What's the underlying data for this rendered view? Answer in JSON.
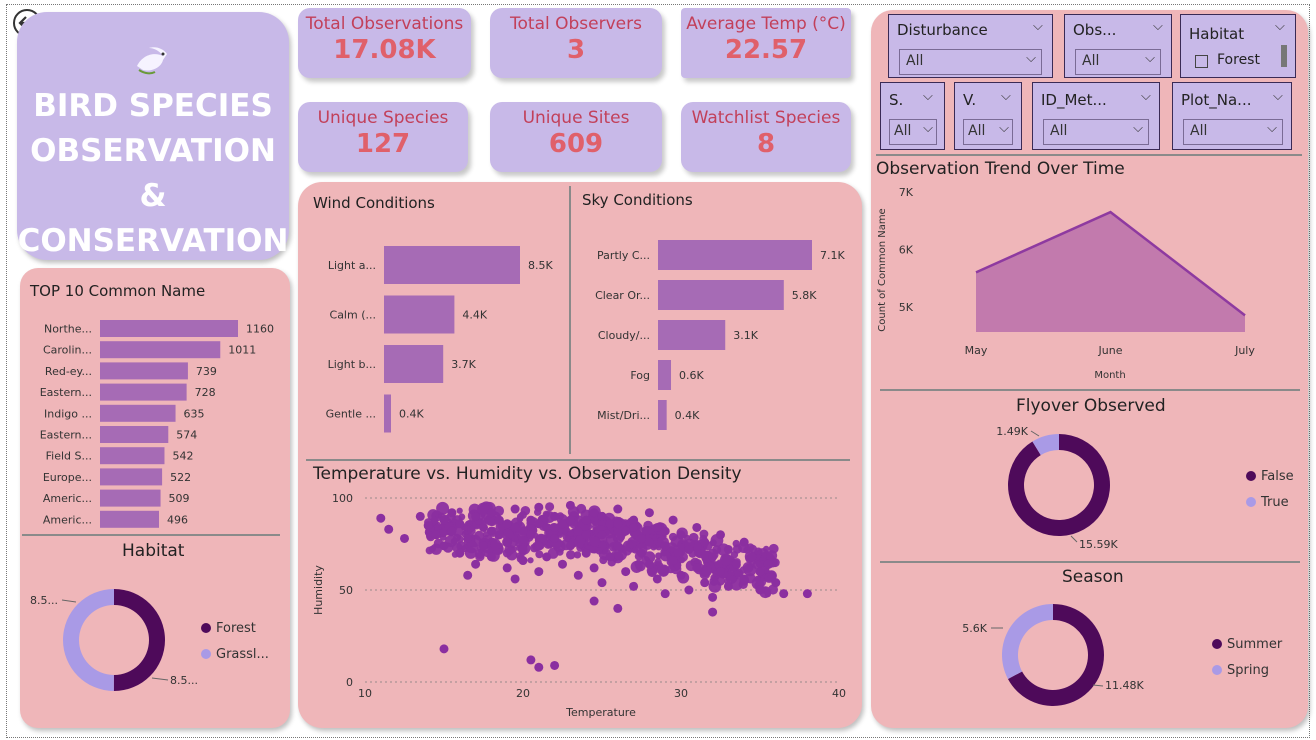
{
  "app": {
    "back_icon": "back-arrow-icon",
    "logo_icon": "dove-icon"
  },
  "title": {
    "line1": "BIRD SPECIES",
    "line2": "OBSERVATION &",
    "line3": "CONSERVATION"
  },
  "kpis": [
    {
      "label": "Total Observations",
      "value": "17.08K"
    },
    {
      "label": "Total Observers",
      "value": "3"
    },
    {
      "label": "Average Temp (°C)",
      "value": "22.57"
    },
    {
      "label": "Unique Species",
      "value": "127"
    },
    {
      "label": "Unique Sites",
      "value": "609"
    },
    {
      "label": "Watchlist Species",
      "value": "8"
    }
  ],
  "slicers": {
    "disturbance": {
      "name": "Disturbance",
      "value": "All"
    },
    "obs": {
      "name": "Obs...",
      "value": "All"
    },
    "habitat": {
      "name": "Habitat",
      "option": "Forest"
    },
    "s": {
      "name": "S.",
      "value": "All"
    },
    "v": {
      "name": "V.",
      "value": "All"
    },
    "id_met": {
      "name": "ID_Met...",
      "value": "All"
    },
    "plot_na": {
      "name": "Plot_Na...",
      "value": "All"
    }
  },
  "colors": {
    "accent": "#a66bb5",
    "dark": "#4e0a5a",
    "light": "#a99ae6",
    "area_line": "#8e3aa0",
    "area_fill": "#c27aad",
    "scatter": "#8b2fa0",
    "pink": "#efb6b9",
    "lavender": "#c8b9e8",
    "kpi_label": "#c2405a",
    "kpi_value": "#e0606a"
  },
  "chart_data": [
    {
      "id": "top10",
      "type": "bar",
      "title": "TOP 10 Common Name",
      "categories": [
        "Northe...",
        "Carolin...",
        "Red-ey...",
        "Eastern...",
        "Indigo ...",
        "Eastern...",
        "Field S...",
        "Europe...",
        "Americ...",
        "Americ..."
      ],
      "values": [
        1160,
        1011,
        739,
        728,
        635,
        574,
        542,
        522,
        509,
        496
      ],
      "labels": [
        "1160",
        "1011",
        "739",
        "728",
        "635",
        "574",
        "542",
        "522",
        "509",
        "496"
      ]
    },
    {
      "id": "wind",
      "type": "bar",
      "title": "Wind Conditions",
      "categories": [
        "Light a...",
        "Calm (...",
        "Light b...",
        "Gentle ..."
      ],
      "values": [
        8500,
        4400,
        3700,
        400
      ],
      "labels": [
        "8.5K",
        "4.4K",
        "3.7K",
        "0.4K"
      ]
    },
    {
      "id": "sky",
      "type": "bar",
      "title": "Sky Conditions",
      "categories": [
        "Partly C...",
        "Clear Or...",
        "Cloudy/...",
        "Fog",
        "Mist/Dri..."
      ],
      "values": [
        7100,
        5800,
        3100,
        600,
        400
      ],
      "labels": [
        "7.1K",
        "5.8K",
        "3.1K",
        "0.6K",
        "0.4K"
      ]
    },
    {
      "id": "habitat",
      "type": "pie",
      "title": "Habitat",
      "series": [
        {
          "name": "Forest",
          "value": 8.55
        },
        {
          "name": "Grassl...",
          "value": 8.53
        }
      ],
      "slice_labels": [
        "8.5...",
        "8.5..."
      ],
      "legend": "right"
    },
    {
      "id": "scatter",
      "type": "scatter",
      "title": "Temperature vs. Humidity vs. Observation Density",
      "xlabel": "Temperature",
      "ylabel": "Humidity",
      "xlim": [
        10,
        40
      ],
      "ylim": [
        0,
        100
      ],
      "x_ticks": [
        "10",
        "20",
        "30",
        "40"
      ],
      "y_ticks": [
        "0",
        "50",
        "100"
      ],
      "grid": true,
      "points": [
        {
          "x": 11,
          "y": 89
        },
        {
          "x": 11.5,
          "y": 83
        },
        {
          "x": 12.5,
          "y": 78
        },
        {
          "x": 13.5,
          "y": 90
        },
        {
          "x": 14,
          "y": 85
        },
        {
          "x": 14.5,
          "y": 80
        },
        {
          "x": 15,
          "y": 74
        },
        {
          "x": 15,
          "y": 88
        },
        {
          "x": 15.5,
          "y": 92
        },
        {
          "x": 15.5,
          "y": 82
        },
        {
          "x": 16,
          "y": 86
        },
        {
          "x": 16.5,
          "y": 78
        },
        {
          "x": 16,
          "y": 70
        },
        {
          "x": 17,
          "y": 64
        },
        {
          "x": 17.5,
          "y": 84
        },
        {
          "x": 17.5,
          "y": 74
        },
        {
          "x": 18,
          "y": 92
        },
        {
          "x": 18,
          "y": 68
        },
        {
          "x": 18.5,
          "y": 80
        },
        {
          "x": 18.5,
          "y": 88
        },
        {
          "x": 19,
          "y": 62
        },
        {
          "x": 19,
          "y": 76
        },
        {
          "x": 19.5,
          "y": 94
        },
        {
          "x": 19.5,
          "y": 84
        },
        {
          "x": 20,
          "y": 72
        },
        {
          "x": 20,
          "y": 66
        },
        {
          "x": 20.5,
          "y": 88
        },
        {
          "x": 20.5,
          "y": 80
        },
        {
          "x": 21,
          "y": 95
        },
        {
          "x": 21,
          "y": 74
        },
        {
          "x": 21,
          "y": 60
        },
        {
          "x": 21.5,
          "y": 84
        },
        {
          "x": 21.5,
          "y": 68
        },
        {
          "x": 22,
          "y": 90
        },
        {
          "x": 22,
          "y": 78
        },
        {
          "x": 22.5,
          "y": 86
        },
        {
          "x": 22.5,
          "y": 64
        },
        {
          "x": 23,
          "y": 96
        },
        {
          "x": 23,
          "y": 74
        },
        {
          "x": 23.5,
          "y": 82
        },
        {
          "x": 23.5,
          "y": 58
        },
        {
          "x": 24,
          "y": 88
        },
        {
          "x": 24,
          "y": 70
        },
        {
          "x": 24.5,
          "y": 92
        },
        {
          "x": 24.5,
          "y": 62
        },
        {
          "x": 25,
          "y": 80
        },
        {
          "x": 25,
          "y": 54
        },
        {
          "x": 25.5,
          "y": 86
        },
        {
          "x": 25.5,
          "y": 68
        },
        {
          "x": 26,
          "y": 94
        },
        {
          "x": 26,
          "y": 74
        },
        {
          "x": 26.5,
          "y": 60
        },
        {
          "x": 26.5,
          "y": 82
        },
        {
          "x": 27,
          "y": 88
        },
        {
          "x": 27,
          "y": 52
        },
        {
          "x": 27.5,
          "y": 70
        },
        {
          "x": 27.5,
          "y": 78
        },
        {
          "x": 28,
          "y": 92
        },
        {
          "x": 28,
          "y": 64
        },
        {
          "x": 28.5,
          "y": 84
        },
        {
          "x": 28.5,
          "y": 56
        },
        {
          "x": 29,
          "y": 74
        },
        {
          "x": 29,
          "y": 48
        },
        {
          "x": 29.5,
          "y": 88
        },
        {
          "x": 29.5,
          "y": 66
        },
        {
          "x": 30,
          "y": 80
        },
        {
          "x": 30,
          "y": 58
        },
        {
          "x": 30.5,
          "y": 72
        },
        {
          "x": 30.5,
          "y": 50
        },
        {
          "x": 31,
          "y": 84
        },
        {
          "x": 31,
          "y": 62
        },
        {
          "x": 31.5,
          "y": 76
        },
        {
          "x": 31.5,
          "y": 54
        },
        {
          "x": 32,
          "y": 68
        },
        {
          "x": 32,
          "y": 46
        },
        {
          "x": 32.5,
          "y": 80
        },
        {
          "x": 32.5,
          "y": 60
        },
        {
          "x": 33,
          "y": 72
        },
        {
          "x": 33,
          "y": 52
        },
        {
          "x": 33.5,
          "y": 64
        },
        {
          "x": 34,
          "y": 76
        },
        {
          "x": 34,
          "y": 56
        },
        {
          "x": 34.5,
          "y": 68
        },
        {
          "x": 35,
          "y": 60
        },
        {
          "x": 35,
          "y": 50
        },
        {
          "x": 35.5,
          "y": 64
        },
        {
          "x": 36,
          "y": 54
        },
        {
          "x": 36.5,
          "y": 48
        },
        {
          "x": 38,
          "y": 48
        },
        {
          "x": 23,
          "y": 88
        },
        {
          "x": 24,
          "y": 80
        },
        {
          "x": 22,
          "y": 84
        },
        {
          "x": 25,
          "y": 90
        },
        {
          "x": 26,
          "y": 86
        },
        {
          "x": 20,
          "y": 82
        },
        {
          "x": 21,
          "y": 86
        },
        {
          "x": 27,
          "y": 84
        },
        {
          "x": 19,
          "y": 86
        },
        {
          "x": 18,
          "y": 82
        },
        {
          "x": 17,
          "y": 90
        },
        {
          "x": 28,
          "y": 76
        },
        {
          "x": 29,
          "y": 82
        },
        {
          "x": 16.5,
          "y": 58
        },
        {
          "x": 15,
          "y": 18
        },
        {
          "x": 20.5,
          "y": 12
        },
        {
          "x": 21,
          "y": 8
        },
        {
          "x": 22,
          "y": 9
        },
        {
          "x": 19.5,
          "y": 56
        },
        {
          "x": 24.5,
          "y": 44
        },
        {
          "x": 26,
          "y": 40
        },
        {
          "x": 32,
          "y": 38
        }
      ]
    },
    {
      "id": "trend",
      "type": "area",
      "title": "Observation Trend Over Time",
      "xlabel": "Month",
      "ylabel": "Count of Common Name",
      "categories": [
        "May",
        "June",
        "July"
      ],
      "values": [
        5600,
        6650,
        4850
      ],
      "ylim": [
        4700,
        7000
      ],
      "y_ticks": [
        "5K",
        "6K",
        "7K"
      ]
    },
    {
      "id": "flyover",
      "type": "pie",
      "title": "Flyover Observed",
      "series": [
        {
          "name": "False",
          "value": 15590
        },
        {
          "name": "True",
          "value": 1490
        }
      ],
      "slice_labels": [
        "15.59K",
        "1.49K"
      ],
      "legend": "right"
    },
    {
      "id": "season",
      "type": "pie",
      "title": "Season",
      "series": [
        {
          "name": "Summer",
          "value": 11480
        },
        {
          "name": "Spring",
          "value": 5600
        }
      ],
      "slice_labels": [
        "11.48K",
        "5.6K"
      ],
      "legend": "right"
    }
  ]
}
